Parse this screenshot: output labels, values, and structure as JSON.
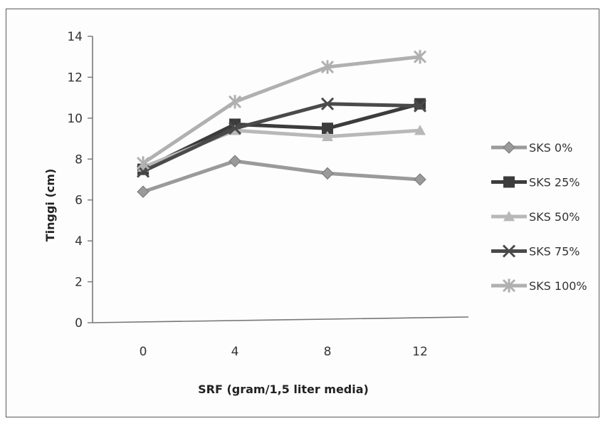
{
  "chart_data": {
    "type": "line",
    "xlabel": "SRF (gram/1,5 liter media)",
    "ylabel": "Tinggi (cm)",
    "categories": [
      "0",
      "4",
      "8",
      "12"
    ],
    "ylim": [
      0,
      14
    ],
    "yticks": [
      "0",
      "2",
      "4",
      "6",
      "8",
      "10",
      "12",
      "14"
    ],
    "grid": false,
    "legend_position": "right",
    "series": [
      {
        "name": "SKS 0%",
        "values": [
          6.4,
          7.9,
          7.3,
          7.0
        ],
        "color": "#9a9a9a",
        "marker": "diamond-icon"
      },
      {
        "name": "SKS 25%",
        "values": [
          7.5,
          9.7,
          9.5,
          10.7
        ],
        "color": "#3c3c3c",
        "marker": "square-icon"
      },
      {
        "name": "SKS 50%",
        "values": [
          7.6,
          9.4,
          9.1,
          9.4
        ],
        "color": "#b8b8b8",
        "marker": "triangle-icon"
      },
      {
        "name": "SKS 75%",
        "values": [
          7.4,
          9.5,
          10.7,
          10.6
        ],
        "color": "#4a4a4a",
        "marker": "x-icon"
      },
      {
        "name": "SKS 100%",
        "values": [
          7.8,
          10.8,
          12.5,
          13.0
        ],
        "color": "#b0b0b0",
        "marker": "asterisk-icon"
      }
    ]
  }
}
